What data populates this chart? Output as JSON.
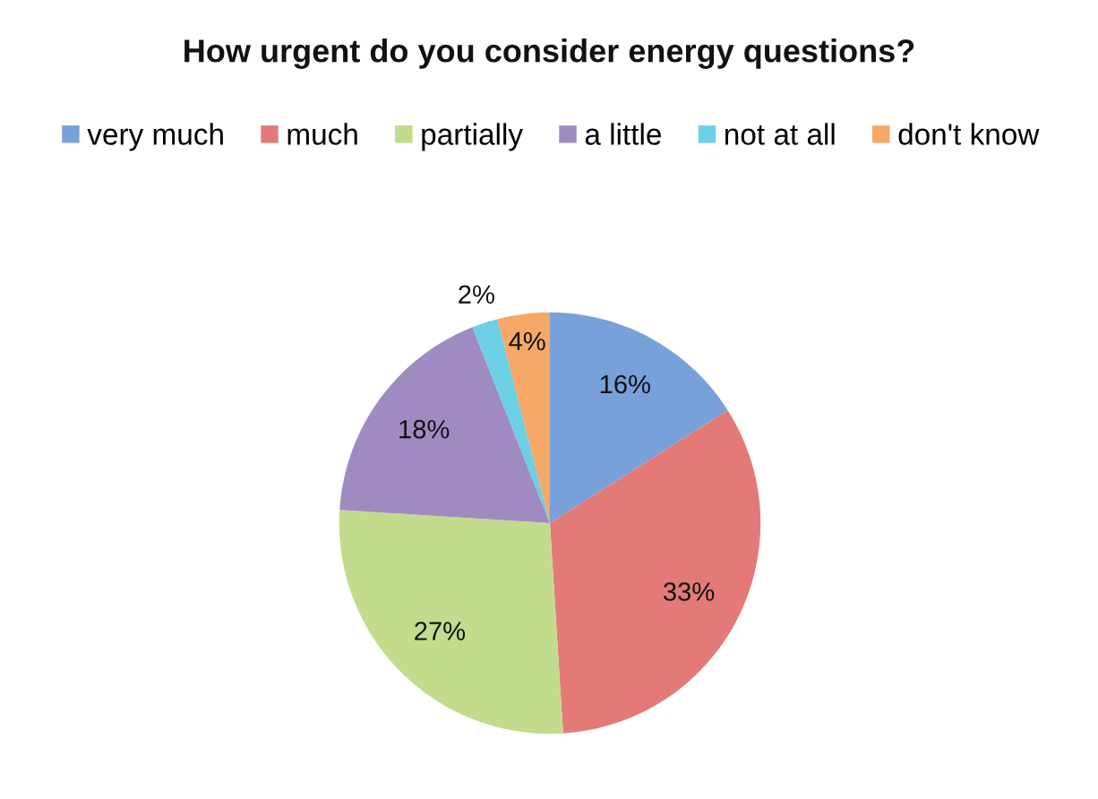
{
  "chart_data": {
    "type": "pie",
    "title": "How urgent do you consider energy questions?",
    "categories": [
      "very much",
      "much",
      "partially",
      "a little",
      "not at all",
      "don't know"
    ],
    "values": [
      16,
      33,
      27,
      18,
      2,
      4
    ],
    "colors": [
      "#78a1da",
      "#e47a77",
      "#c3db8c",
      "#a08bc1",
      "#6ccfe6",
      "#f7a766"
    ],
    "value_labels": [
      "16%",
      "33%",
      "27%",
      "18%",
      "2%",
      "4%"
    ],
    "legend": "top"
  }
}
